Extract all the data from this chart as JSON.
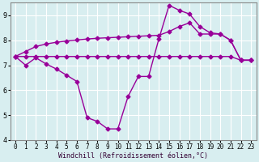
{
  "line1_x": [
    0,
    1,
    2,
    3,
    4,
    5,
    6,
    7,
    8,
    9,
    10,
    11,
    12,
    13,
    14,
    15,
    16,
    17,
    18,
    19,
    20,
    21,
    22,
    23
  ],
  "line1_y": [
    7.35,
    7.0,
    7.3,
    7.05,
    6.85,
    6.6,
    6.35,
    4.9,
    4.75,
    4.45,
    4.45,
    5.75,
    6.55,
    6.55,
    8.05,
    9.4,
    9.2,
    9.05,
    8.55,
    8.3,
    8.25,
    8.0,
    7.2,
    7.2
  ],
  "line2_x": [
    0,
    1,
    2,
    3,
    4,
    5,
    6,
    7,
    8,
    9,
    10,
    11,
    12,
    13,
    14,
    15,
    16,
    17,
    18,
    19,
    20,
    21,
    22,
    23
  ],
  "line2_y": [
    7.35,
    7.35,
    7.35,
    7.35,
    7.35,
    7.35,
    7.35,
    7.35,
    7.35,
    7.35,
    7.35,
    7.35,
    7.35,
    7.35,
    7.35,
    7.35,
    7.35,
    7.35,
    7.35,
    7.35,
    7.35,
    7.35,
    7.2,
    7.2
  ],
  "line3_x": [
    0,
    1,
    2,
    3,
    4,
    5,
    6,
    7,
    8,
    9,
    10,
    11,
    12,
    13,
    14,
    15,
    16,
    17,
    18,
    19,
    20,
    21,
    22,
    23
  ],
  "line3_y": [
    7.35,
    7.55,
    7.75,
    7.85,
    7.92,
    7.97,
    8.01,
    8.05,
    8.08,
    8.1,
    8.12,
    8.14,
    8.16,
    8.18,
    8.2,
    8.35,
    8.55,
    8.7,
    8.25,
    8.25,
    8.25,
    8.0,
    7.2,
    7.2
  ],
  "line_color": "#990099",
  "bg_color": "#d8eef0",
  "grid_color": "#ffffff",
  "xlabel": "Windchill (Refroidissement éolien,°C)",
  "ylim": [
    4.0,
    9.5
  ],
  "xlim": [
    -0.5,
    23.5
  ],
  "yticks": [
    4,
    5,
    6,
    7,
    8,
    9
  ],
  "xticks": [
    0,
    1,
    2,
    3,
    4,
    5,
    6,
    7,
    8,
    9,
    10,
    11,
    12,
    13,
    14,
    15,
    16,
    17,
    18,
    19,
    20,
    21,
    22,
    23
  ],
  "marker": "D",
  "markersize": 2.5,
  "linewidth": 1.0,
  "tick_fontsize": 5.5,
  "xlabel_fontsize": 6.0
}
